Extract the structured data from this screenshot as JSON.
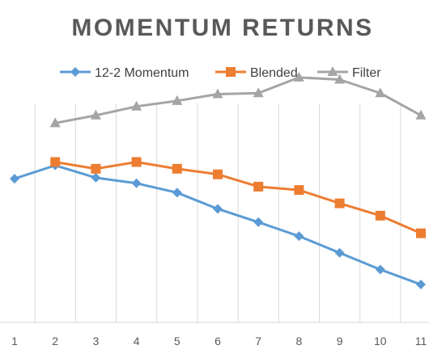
{
  "chart_data": {
    "type": "line",
    "title": "MOMENTUM RETURNS",
    "categories": [
      "1",
      "2",
      "3",
      "4",
      "5",
      "6",
      "7",
      "8",
      "9",
      "10",
      "11"
    ],
    "ylim": [
      0,
      100
    ],
    "grid": "vertical",
    "legend_position": "top",
    "series": [
      {
        "name": "12-2 Momentum",
        "color": "#5B9BD5",
        "marker": "diamond",
        "values": [
          59.5,
          65.0,
          59.9,
          57.6,
          53.7,
          47.0,
          41.5,
          35.7,
          28.8,
          21.9,
          15.7
        ]
      },
      {
        "name": "Blended",
        "color": "#ED7D31",
        "marker": "square",
        "values": [
          null,
          66.4,
          63.6,
          66.4,
          63.6,
          61.3,
          56.2,
          54.8,
          49.3,
          44.2,
          36.9
        ]
      },
      {
        "name": "Filter",
        "color": "#A5A5A5",
        "marker": "triangle",
        "values": [
          null,
          82.5,
          85.7,
          89.4,
          91.7,
          94.5,
          94.9,
          101.4,
          100.5,
          94.9,
          85.7
        ]
      }
    ]
  }
}
